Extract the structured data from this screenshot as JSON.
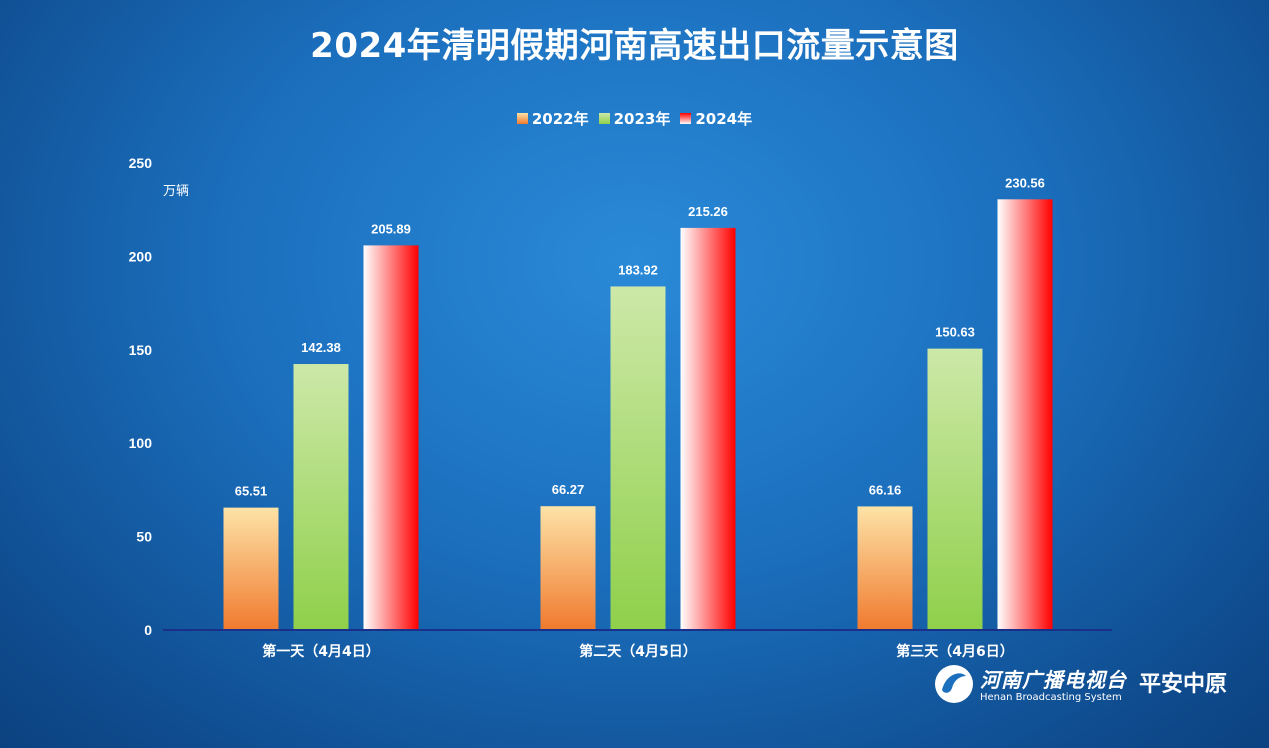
{
  "chart_data": {
    "type": "bar",
    "title": "2024年清明假期河南高速出口流量示意图",
    "ylabel": "万辆",
    "ylim": [
      0,
      250
    ],
    "yticks": [
      0,
      50,
      100,
      150,
      200,
      250
    ],
    "categories": [
      "第一天（4月4日）",
      "第二天（4月5日）",
      "第三天（4月6日）"
    ],
    "series": [
      {
        "name": "2022年",
        "values": [
          65.51,
          66.27,
          66.16
        ],
        "colors": [
          "#fde3a7",
          "#f07a2e"
        ]
      },
      {
        "name": "2023年",
        "values": [
          142.38,
          183.92,
          150.63
        ],
        "colors": [
          "#cde8a8",
          "#8fd04a"
        ]
      },
      {
        "name": "2024年",
        "values": [
          205.89,
          215.26,
          230.56
        ],
        "colors": [
          "#ff0000",
          "#ffffff"
        ]
      }
    ],
    "value_labels": {
      "2022年": [
        "65.51",
        "66.27",
        "66.16"
      ],
      "2023年": [
        "142.38",
        "183.92",
        "150.63"
      ],
      "2024年": [
        "205.89",
        "215.26",
        "230.56"
      ]
    },
    "grid": false,
    "legend_position": "top"
  },
  "logo": {
    "name": "河南广播电视台",
    "english": "Henan Broadcasting System",
    "slogan": "平安中原"
  }
}
